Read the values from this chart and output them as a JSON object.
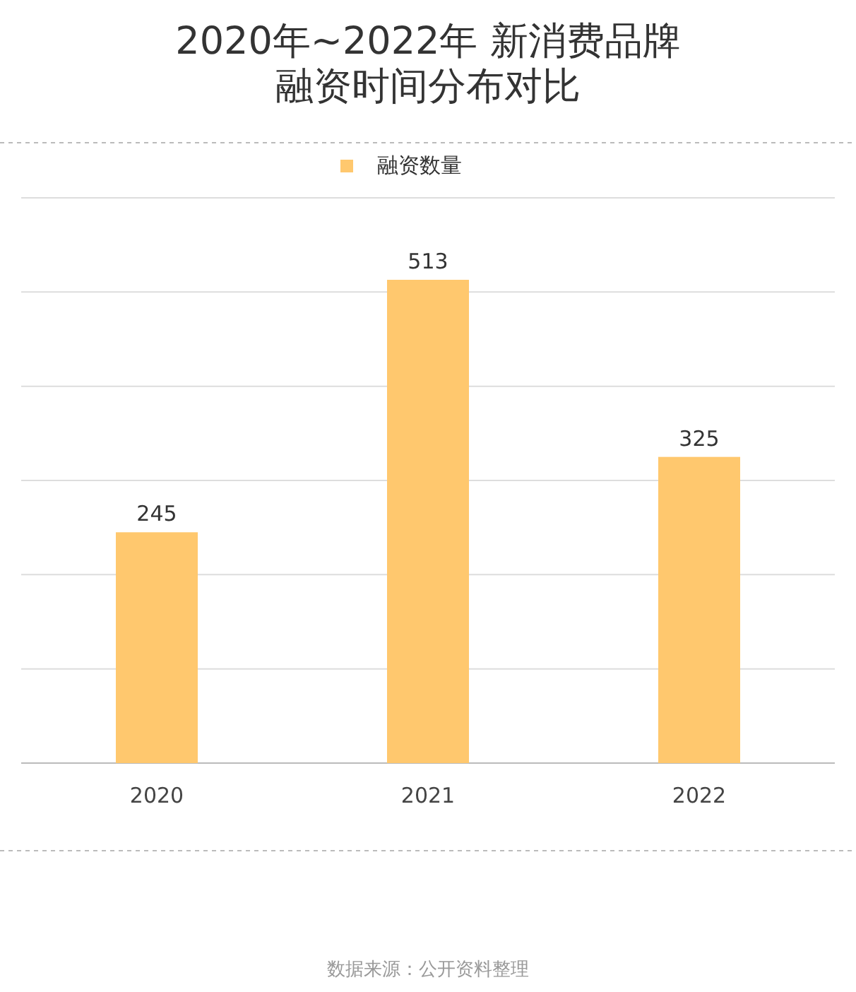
{
  "chart_data": {
    "type": "bar",
    "title": "2020年~2022年 新消费品牌融资时间分布对比",
    "categories": [
      "2020",
      "2021",
      "2022"
    ],
    "series": [
      {
        "name": "融资数量",
        "color": "#ffc86e",
        "values": [
          245,
          513,
          325
        ]
      }
    ],
    "ylim": [
      0,
      600
    ],
    "yticks": [
      {
        "value": 0,
        "label": null
      },
      {
        "value": 100,
        "label": null
      },
      {
        "value": 200,
        "label": null
      },
      {
        "value": 300,
        "label": null
      },
      {
        "value": 400,
        "label": null
      },
      {
        "value": 500,
        "label": null
      },
      {
        "value": 600,
        "label": null
      }
    ],
    "tick_labels": "x",
    "grid": "y",
    "legend": "top",
    "data_labels": true,
    "annotations": [
      "数据来源：公开资料整理"
    ]
  }
}
